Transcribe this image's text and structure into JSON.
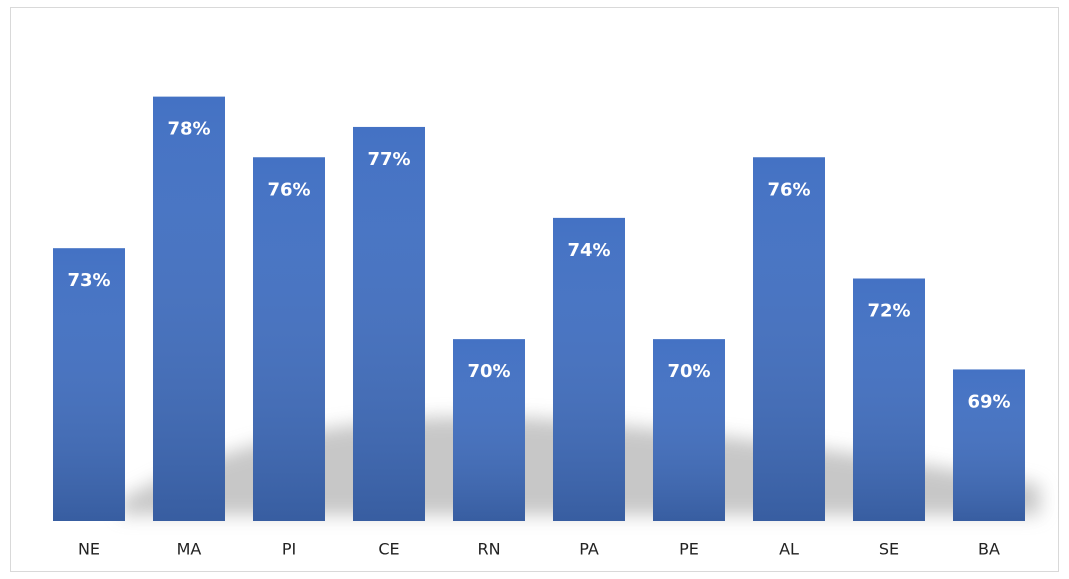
{
  "chart_data": {
    "type": "bar",
    "categories": [
      "NE",
      "MA",
      "PI",
      "CE",
      "RN",
      "PA",
      "PE",
      "AL",
      "SE",
      "BA"
    ],
    "values": [
      73,
      78,
      76,
      77,
      70,
      74,
      70,
      76,
      72,
      69
    ],
    "value_labels": [
      "73%",
      "78%",
      "76%",
      "77%",
      "70%",
      "74%",
      "70%",
      "76%",
      "72%",
      "69%"
    ],
    "color": "#4472c4",
    "ylim": [
      64,
      80
    ]
  }
}
